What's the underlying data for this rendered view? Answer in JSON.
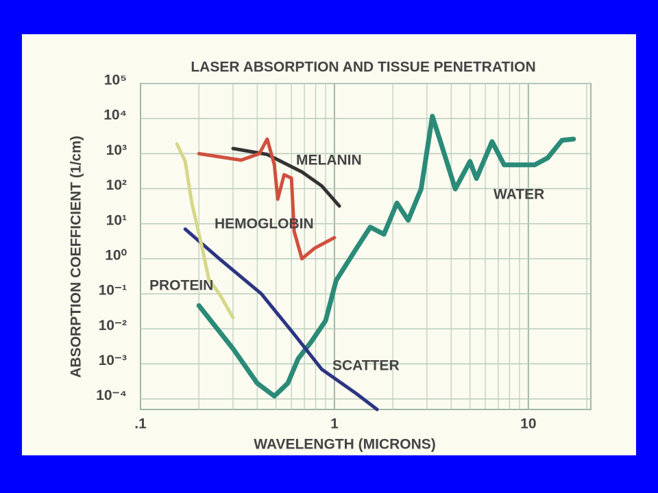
{
  "chart_data": {
    "type": "line",
    "title": "LASER ABSORPTION AND TISSUE PENETRATION",
    "x_label": "WAVELENGTH (MICRONS)",
    "y_label": "ABSORPTION COEFFICIENT (1/cm)",
    "x_scale": "log",
    "y_scale": "log",
    "grid": true,
    "xlim": [
      0.1,
      21
    ],
    "ylim": [
      5e-05,
      100000
    ],
    "xticks": [
      {
        "value": 0.1,
        "label": ".1"
      },
      1,
      10
    ],
    "x_minor_ticks": [
      0.2,
      0.3,
      0.4,
      0.5,
      0.6,
      0.7,
      0.8,
      0.9,
      2,
      3,
      4,
      5,
      6,
      7,
      8,
      9,
      20
    ],
    "yticks": [
      {
        "value": 100000,
        "label": "10⁵"
      },
      {
        "value": 10000,
        "label": "10⁴"
      },
      {
        "value": 1000,
        "label": "10³"
      },
      {
        "value": 100,
        "label": "10²"
      },
      {
        "value": 10,
        "label": "10¹"
      },
      {
        "value": 1,
        "label": "10⁰"
      },
      {
        "value": 0.1,
        "label": "10⁻¹"
      },
      {
        "value": 0.01,
        "label": "10⁻²"
      },
      {
        "value": 0.001,
        "label": "10⁻³"
      },
      {
        "value": 0.0001,
        "label": "10⁻⁴"
      }
    ],
    "series": [
      {
        "name": "WATER",
        "color": "#2b8a78",
        "x": [
          0.2,
          0.3,
          0.4,
          0.49,
          0.575,
          0.65,
          0.76,
          0.9,
          1.02,
          1.3,
          1.53,
          1.8,
          2.1,
          2.4,
          2.8,
          3.2,
          3.6,
          4.2,
          5.0,
          5.4,
          6.5,
          7.5,
          10.8,
          12.6,
          14.9,
          17.1
        ],
        "values": [
          0.046,
          0.0027,
          0.00028,
          0.00012,
          0.00028,
          0.0014,
          0.0043,
          0.017,
          0.24,
          2,
          8,
          5,
          39,
          12.5,
          98,
          11700,
          1500,
          98,
          600,
          195,
          2200,
          480,
          480,
          760,
          2400,
          2600
        ]
      },
      {
        "name": "SCATTER",
        "color": "#2c3582",
        "x": [
          0.17,
          0.255,
          0.42,
          0.62,
          0.86,
          1.3,
          1.66
        ],
        "values": [
          7,
          1,
          0.1,
          0.007,
          0.0007,
          0.00014,
          5e-05
        ]
      },
      {
        "name": "MELANIN",
        "color": "#333333",
        "x": [
          0.3,
          0.45,
          0.68,
          0.86,
          1.06
        ],
        "values": [
          1400,
          950,
          300,
          120,
          32
        ]
      },
      {
        "name": "HEMOGLOBIN",
        "color": "#d0503e",
        "x": [
          0.2,
          0.33,
          0.41,
          0.45,
          0.49,
          0.51,
          0.55,
          0.6,
          0.62,
          0.68,
          0.79,
          1.0
        ],
        "values": [
          1000,
          650,
          1000,
          2600,
          480,
          50,
          250,
          200,
          6,
          1,
          2,
          4
        ]
      },
      {
        "name": "PROTEIN",
        "color": "#d6d88a",
        "x": [
          0.154,
          0.17,
          0.184,
          0.21,
          0.225,
          0.255,
          0.3
        ],
        "values": [
          1900,
          600,
          39,
          1.6,
          0.26,
          0.1,
          0.021
        ]
      }
    ]
  }
}
